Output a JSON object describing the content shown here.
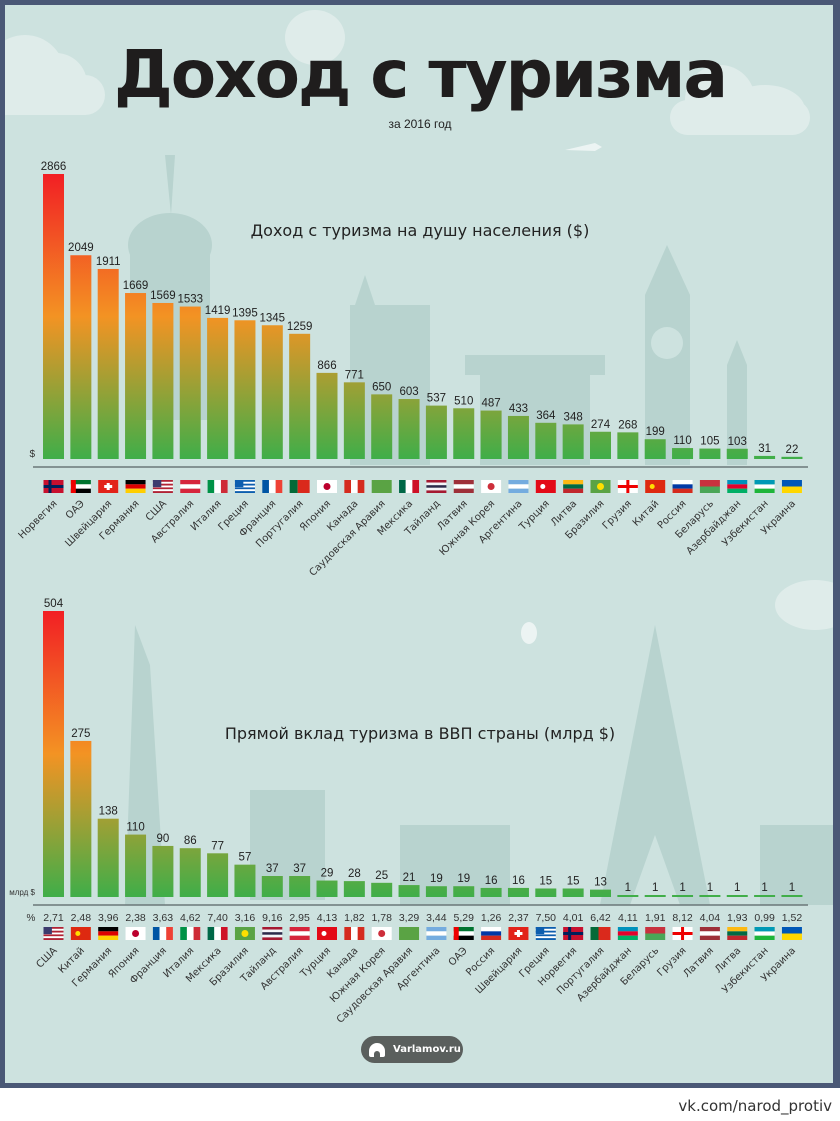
{
  "title": "Доход с туризма",
  "subtitle": "за 2016 год",
  "badge": {
    "label": "Varlamov.ru"
  },
  "footer": "vk.com/narod_protiv",
  "colors": {
    "background": "#cde2df",
    "frame": "#4a5876",
    "bar_top": "#f21f24",
    "bar_mid": "#f39323",
    "bar_bottom": "#3fae49"
  },
  "chart_data": [
    {
      "type": "bar",
      "title": "Доход с туризма на душу населения ($)",
      "ylabel": "$",
      "ylim": [
        0,
        2866
      ],
      "grid": false,
      "categories": [
        "Норвегия",
        "ОАЭ",
        "Швейцария",
        "Германия",
        "США",
        "Австралия",
        "Италия",
        "Греция",
        "Франция",
        "Португалия",
        "Япония",
        "Канада",
        "Саудовская Аравия",
        "Мексика",
        "Тайланд",
        "Латвия",
        "Южная Корея",
        "Аргентина",
        "Турция",
        "Литва",
        "Бразилия",
        "Грузия",
        "Китай",
        "Россия",
        "Беларусь",
        "Азербайджан",
        "Узбекистан",
        "Украина"
      ],
      "flags": [
        "no",
        "ae",
        "ch",
        "de",
        "us",
        "at",
        "it",
        "gr",
        "fr",
        "pt",
        "jp",
        "ca",
        "sa",
        "mx",
        "th",
        "lv",
        "kr",
        "ar",
        "tr",
        "lt",
        "br",
        "ge",
        "cn",
        "ru",
        "by",
        "az",
        "uz",
        "ua"
      ],
      "values": [
        2866,
        2049,
        1911,
        1669,
        1569,
        1533,
        1419,
        1395,
        1345,
        1259,
        866,
        771,
        650,
        603,
        537,
        510,
        487,
        433,
        364,
        348,
        274,
        268,
        199,
        110,
        105,
        103,
        31,
        22
      ]
    },
    {
      "type": "bar",
      "title": "Прямой вклад туризма в ВВП страны (млрд $)",
      "ylabel": "млрд $",
      "row_label": "%",
      "ylim": [
        0,
        504
      ],
      "grid": false,
      "categories": [
        "США",
        "Китай",
        "Германия",
        "Япония",
        "Франция",
        "Италия",
        "Мексика",
        "Бразилия",
        "Тайланд",
        "Австралия",
        "Турция",
        "Канада",
        "Южная Корея",
        "Саудовская Аравия",
        "Аргентина",
        "ОАЭ",
        "Россия",
        "Швейцария",
        "Греция",
        "Норвегия",
        "Португалия",
        "Азербайджан",
        "Беларусь",
        "Грузия",
        "Латвия",
        "Литва",
        "Узбекистан",
        "Украина"
      ],
      "flags": [
        "us",
        "cn",
        "de",
        "jp",
        "fr",
        "it",
        "mx",
        "br",
        "th",
        "at",
        "tr",
        "ca",
        "kr",
        "sa",
        "ar",
        "ae",
        "ru",
        "ch",
        "gr",
        "no",
        "pt",
        "az",
        "by",
        "ge",
        "lv",
        "lt",
        "uz",
        "ua"
      ],
      "values": [
        504,
        275,
        138,
        110,
        90,
        86,
        77,
        57,
        37,
        37,
        29,
        28,
        25,
        21,
        19,
        19,
        16,
        16,
        15,
        15,
        13,
        1,
        1,
        1,
        1,
        1,
        1,
        1
      ],
      "percent_of_gdp": [
        "2,71",
        "2,48",
        "3,96",
        "2,38",
        "3,63",
        "4,62",
        "7,40",
        "3,16",
        "9,16",
        "2,95",
        "4,13",
        "1,82",
        "1,78",
        "3,29",
        "3,44",
        "5,29",
        "1,26",
        "2,37",
        "7,50",
        "4,01",
        "6,42",
        "4,11",
        "1,91",
        "8,12",
        "4,04",
        "1,93",
        "0,99",
        "1,52"
      ]
    }
  ]
}
